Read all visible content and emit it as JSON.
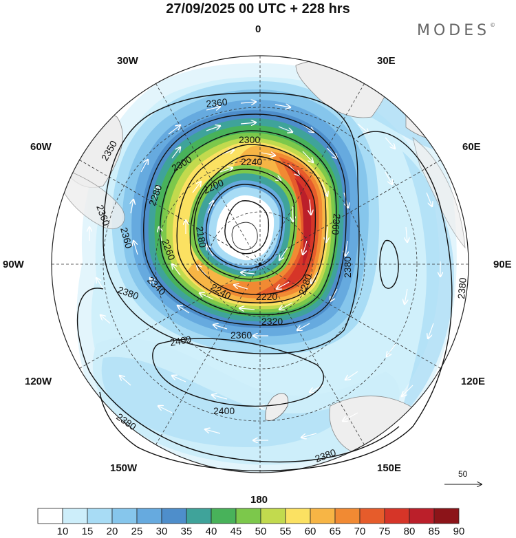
{
  "title": "27/09/2025  00 UTC  + 228 hrs",
  "brand": {
    "name": "MODES",
    "mark": "©"
  },
  "longitude_labels": {
    "l0": "0",
    "l30e": "30E",
    "l60e": "60E",
    "l90e": "90E",
    "l120e": "120E",
    "l150e": "150E",
    "l180": "180",
    "l150w": "150W",
    "l120w": "120W",
    "l90w": "90W",
    "l60w": "60W",
    "l30w": "30W"
  },
  "contours": {
    "c2360a": "2360",
    "c2350": "2350",
    "c2360b": "2360",
    "c2360c": "2360",
    "c2300a": "2300",
    "c2280a": "2280",
    "c2300b": "2300",
    "c2240a": "2240",
    "c2200": "2200",
    "c2180": "2180",
    "c2260": "2260",
    "c2240b": "2240",
    "c2220": "2220",
    "c2340": "2340",
    "c2320": "2320",
    "c2280b": "2280",
    "c2360d": "2360",
    "c2380a": "2380",
    "c2380b": "2380",
    "c2380c": "2380",
    "c2400a": "2400",
    "c2400b": "2400",
    "c2380d": "2380",
    "c2380e": "2380",
    "c2380f": "2380",
    "c2360e": "2360"
  },
  "reference_vector": {
    "value": "50"
  },
  "colorbar": {
    "labels": [
      "10",
      "15",
      "20",
      "25",
      "30",
      "35",
      "40",
      "45",
      "50",
      "55",
      "60",
      "65",
      "70",
      "75",
      "80",
      "85",
      "90"
    ],
    "colors": [
      "#ffffff",
      "#cdeefa",
      "#a8dcf5",
      "#86c6ec",
      "#66aadf",
      "#4e8ecb",
      "#3fa39a",
      "#48b25a",
      "#7cc84b",
      "#c2da4e",
      "#fbe162",
      "#f7b545",
      "#f18a33",
      "#e65c2b",
      "#d63528",
      "#bb1f2a",
      "#8c1419"
    ]
  },
  "wind_speed_levels": [
    10,
    15,
    20,
    25,
    30,
    35,
    40,
    45,
    50,
    55,
    60,
    65,
    70,
    75,
    80,
    85,
    90
  ]
}
